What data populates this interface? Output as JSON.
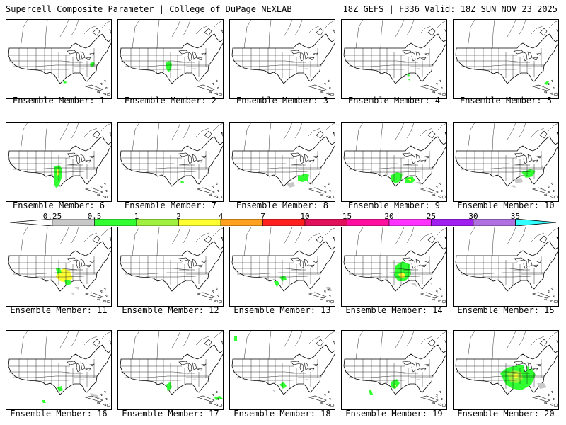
{
  "header": {
    "left": "Supercell Composite Parameter | College of DuPage NEXLAB",
    "right": "18Z GEFS | F336 Valid: 18Z SUN NOV 23 2025"
  },
  "legend": {
    "labels": [
      "0.25",
      "0.5",
      "1",
      "2",
      "4",
      "7",
      "10",
      "15",
      "20",
      "25",
      "30",
      "35"
    ],
    "colors": [
      "#c8c8c8",
      "#32ff32",
      "#a0f040",
      "#ffff32",
      "#ffa020",
      "#ff2020",
      "#e0105a",
      "#ff10a0",
      "#ff32ff",
      "#a020f0",
      "#b070e0",
      "#32ffff"
    ]
  },
  "map_colors": {
    "outline": "#000000",
    "ocean": "#ffffff"
  },
  "panels": [
    {
      "label": "Ensemble Member: 1"
    },
    {
      "label": "Ensemble Member: 2"
    },
    {
      "label": "Ensemble Member: 3"
    },
    {
      "label": "Ensemble Member: 4"
    },
    {
      "label": "Ensemble Member: 5"
    },
    {
      "label": "Ensemble Member: 6"
    },
    {
      "label": "Ensemble Member: 7"
    },
    {
      "label": "Ensemble Member: 8"
    },
    {
      "label": "Ensemble Member: 9"
    },
    {
      "label": "Ensemble Member: 10"
    },
    {
      "label": "Ensemble Member: 11"
    },
    {
      "label": "Ensemble Member: 12"
    },
    {
      "label": "Ensemble Member: 13"
    },
    {
      "label": "Ensemble Member: 14"
    },
    {
      "label": "Ensemble Member: 15"
    },
    {
      "label": "Ensemble Member: 16"
    },
    {
      "label": "Ensemble Member: 17"
    },
    {
      "label": "Ensemble Member: 18"
    },
    {
      "label": "Ensemble Member: 19"
    },
    {
      "label": "Ensemble Member: 20"
    }
  ]
}
